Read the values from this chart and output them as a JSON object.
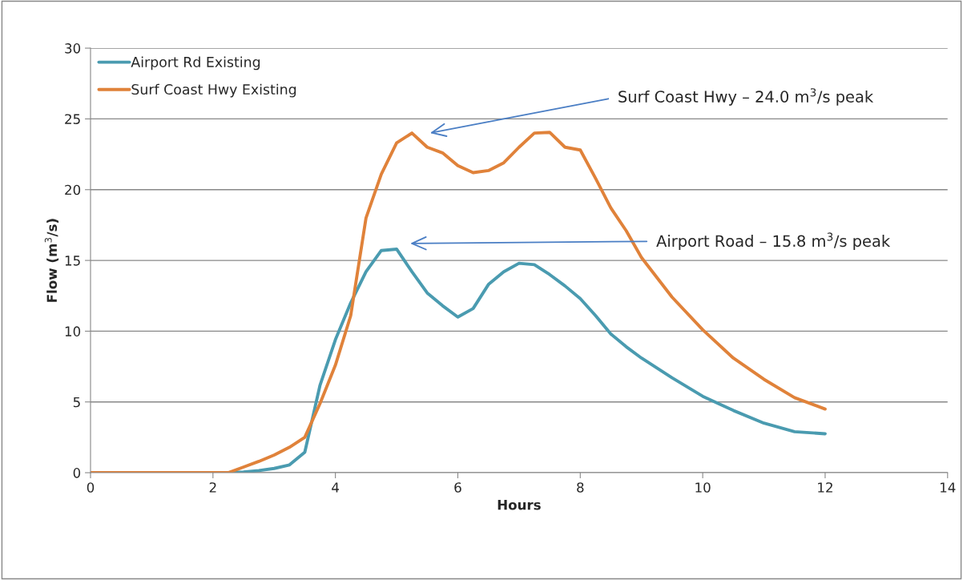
{
  "chart_data": {
    "type": "line",
    "xlabel": "Hours",
    "ylabel": "Flow (m$^{3}$/s)",
    "x": [
      0,
      0.25,
      0.5,
      0.75,
      1,
      1.25,
      1.5,
      1.75,
      2,
      2.25,
      2.5,
      2.75,
      3,
      3.25,
      3.5,
      3.75,
      4,
      4.25,
      4.5,
      4.75,
      5,
      5.25,
      5.5,
      5.75,
      6,
      6.25,
      6.5,
      6.75,
      7,
      7.25,
      7.5,
      7.75,
      8,
      8.25,
      8.5,
      8.75,
      9,
      9.5,
      10,
      10.5,
      11,
      11.5,
      12
    ],
    "series": [
      {
        "name": "Airport Rd Existing",
        "color": "#4a9bb0",
        "values": [
          null,
          null,
          null,
          null,
          null,
          null,
          null,
          null,
          0,
          0,
          0.05,
          0.15,
          0.3,
          0.55,
          1.45,
          6.2,
          9.4,
          12.0,
          14.2,
          15.7,
          15.8,
          14.2,
          12.7,
          11.8,
          11.0,
          11.6,
          13.3,
          14.2,
          14.8,
          14.7,
          14.0,
          13.2,
          12.3,
          11.1,
          9.8,
          8.9,
          8.1,
          6.7,
          5.4,
          4.4,
          3.5,
          2.9,
          2.75
        ]
      },
      {
        "name": "Surf Coast Hwy Existing",
        "color": "#e0823a",
        "values": [
          0,
          0,
          0,
          0,
          0,
          0,
          0,
          0,
          0,
          0,
          0.4,
          0.8,
          1.25,
          1.8,
          2.5,
          4.9,
          7.6,
          11.1,
          18.0,
          21.1,
          23.3,
          24.0,
          23.0,
          22.6,
          21.7,
          21.2,
          21.35,
          21.9,
          23.0,
          24.0,
          24.05,
          23.0,
          22.8,
          20.8,
          18.7,
          17.1,
          15.2,
          12.4,
          10.1,
          8.1,
          6.6,
          5.3,
          4.5
        ]
      }
    ],
    "xlim": [
      0,
      14
    ],
    "xticks": [
      0,
      2,
      4,
      6,
      8,
      10,
      12,
      14
    ],
    "ylim": [
      0,
      30
    ],
    "yticks": [
      0,
      5,
      10,
      15,
      20,
      25,
      30
    ],
    "grid": "y",
    "legend": "top left",
    "marker": "none",
    "line_style": "solid",
    "annotations": [
      "Surf Coast Hwy – 24.0 m$^{3}$/s peak",
      "Airport Road – 15.8 m$^{3}$/s peak"
    ]
  }
}
